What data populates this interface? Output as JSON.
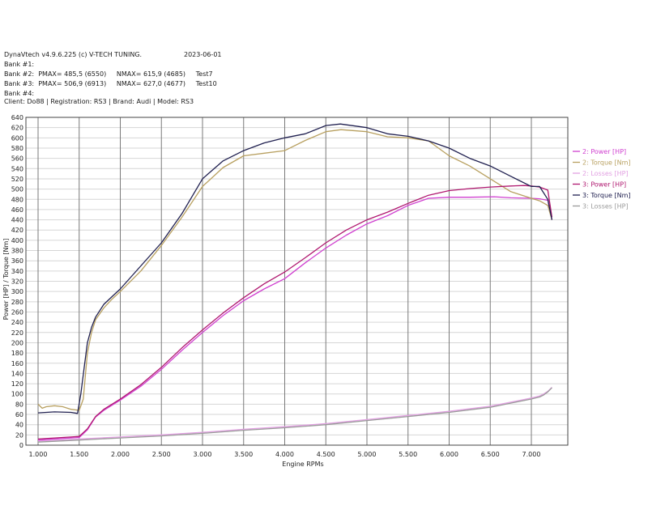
{
  "header": {
    "app": "DynaVtech v4.9.6.225 (c) V-TECH TUNING.",
    "date": "2023-06-01",
    "bank1": "Bank #1:",
    "bank2": "Bank #2:  PMAX= 485,5 (6550)     NMAX= 615,9 (4685)     Test7",
    "bank3": "Bank #3:  PMAX= 506,9 (6913)     NMAX= 627,0 (4677)     Test10",
    "bank4": "Bank #4:",
    "client": "Client: Do88 | Registration: RS3 | Brand: Audi | Model: RS3"
  },
  "chart_data": {
    "type": "line",
    "xlabel": "Engine RPMs",
    "ylabel": "Power [HP] / Torque [Nm]",
    "xlim": [
      1000,
      7250
    ],
    "ylim": [
      0,
      640
    ],
    "x_ticks": [
      "1.000",
      "1.500",
      "2.000",
      "2.500",
      "3.000",
      "3.500",
      "4.000",
      "4.500",
      "5.000",
      "5.500",
      "6.000",
      "6.500",
      "7.000"
    ],
    "x_tick_values": [
      1000,
      1500,
      2000,
      2500,
      3000,
      3500,
      4000,
      4500,
      5000,
      5500,
      6000,
      6500,
      7000
    ],
    "y_ticks": [
      "0",
      "20",
      "40",
      "60",
      "80",
      "100",
      "120",
      "140",
      "160",
      "180",
      "200",
      "220",
      "240",
      "260",
      "280",
      "300",
      "320",
      "340",
      "360",
      "380",
      "400",
      "420",
      "440",
      "460",
      "480",
      "500",
      "520",
      "540",
      "560",
      "580",
      "600",
      "620",
      "640"
    ],
    "y_tick_values": [
      0,
      20,
      40,
      60,
      80,
      100,
      120,
      140,
      160,
      180,
      200,
      220,
      240,
      260,
      280,
      300,
      320,
      340,
      360,
      380,
      400,
      420,
      440,
      460,
      480,
      500,
      520,
      540,
      560,
      580,
      600,
      620,
      640
    ],
    "grid": true,
    "legend_position": "right",
    "series": [
      {
        "name": "2: Power [HP]",
        "color": "#d040d0",
        "x": [
          1000,
          1200,
          1400,
          1500,
          1600,
          1700,
          1800,
          2000,
          2250,
          2500,
          2750,
          3000,
          3250,
          3500,
          3750,
          4000,
          4250,
          4500,
          4750,
          5000,
          5250,
          5500,
          5750,
          6000,
          6250,
          6550,
          6750,
          7000,
          7100,
          7200,
          7250
        ],
        "y": [
          10,
          12,
          14,
          15,
          30,
          55,
          68,
          88,
          115,
          148,
          185,
          220,
          253,
          282,
          305,
          325,
          356,
          385,
          410,
          432,
          448,
          468,
          482,
          484,
          484,
          485,
          483,
          482,
          481,
          478,
          440
        ]
      },
      {
        "name": "2: Torque [Nm]",
        "color": "#b8a060",
        "x": [
          1000,
          1050,
          1100,
          1200,
          1300,
          1400,
          1500,
          1550,
          1600,
          1650,
          1700,
          1800,
          1900,
          2000,
          2250,
          2500,
          2750,
          3000,
          3250,
          3500,
          3750,
          4000,
          4250,
          4500,
          4685,
          5000,
          5250,
          5500,
          5750,
          6000,
          6250,
          6500,
          6750,
          7000,
          7100,
          7200,
          7250
        ],
        "y": [
          80,
          72,
          75,
          77,
          75,
          70,
          68,
          90,
          180,
          220,
          245,
          268,
          285,
          300,
          340,
          390,
          445,
          505,
          542,
          565,
          570,
          575,
          595,
          612,
          616,
          612,
          602,
          600,
          594,
          565,
          545,
          520,
          495,
          482,
          477,
          468,
          440
        ]
      },
      {
        "name": "2: Losses [HP]",
        "color": "#e2a0e2",
        "x": [
          1000,
          1500,
          2000,
          2500,
          3000,
          3500,
          4000,
          4500,
          5000,
          5500,
          6000,
          6500,
          7000,
          7100,
          7150,
          7200,
          7250
        ],
        "y": [
          8,
          12,
          16,
          20,
          25,
          31,
          36,
          42,
          50,
          58,
          66,
          76,
          92,
          96,
          100,
          105,
          113
        ]
      },
      {
        "name": "3: Power [HP]",
        "color": "#b01870",
        "x": [
          1000,
          1200,
          1400,
          1500,
          1600,
          1700,
          1800,
          2000,
          2250,
          2500,
          2750,
          3000,
          3250,
          3500,
          3750,
          4000,
          4250,
          4500,
          4750,
          5000,
          5250,
          5500,
          5750,
          6000,
          6250,
          6500,
          6750,
          6913,
          7000,
          7100,
          7200,
          7250
        ],
        "y": [
          12,
          14,
          16,
          17,
          32,
          56,
          70,
          90,
          118,
          152,
          190,
          225,
          258,
          288,
          315,
          338,
          366,
          395,
          420,
          440,
          455,
          472,
          488,
          497,
          501,
          504,
          506,
          507,
          506,
          504,
          498,
          445
        ]
      },
      {
        "name": "3: Torque [Nm]",
        "color": "#202050",
        "x": [
          1000,
          1200,
          1400,
          1480,
          1520,
          1560,
          1600,
          1650,
          1700,
          1800,
          1900,
          2000,
          2250,
          2500,
          2750,
          3000,
          3250,
          3500,
          3750,
          4000,
          4250,
          4500,
          4677,
          5000,
          5250,
          5500,
          5750,
          6000,
          6250,
          6500,
          6750,
          7000,
          7100,
          7200,
          7250
        ],
        "y": [
          63,
          65,
          64,
          62,
          100,
          150,
          200,
          230,
          250,
          275,
          290,
          305,
          350,
          395,
          452,
          520,
          555,
          575,
          590,
          600,
          608,
          624,
          627,
          620,
          608,
          603,
          594,
          580,
          560,
          545,
          525,
          505,
          505,
          480,
          440
        ]
      },
      {
        "name": "3: Losses [HP]",
        "color": "#9a9a9a",
        "x": [
          1000,
          1500,
          2000,
          2500,
          3000,
          3500,
          4000,
          4500,
          5000,
          5500,
          6000,
          6500,
          7000,
          7100,
          7150,
          7200,
          7250
        ],
        "y": [
          6,
          10,
          14,
          18,
          23,
          29,
          34,
          40,
          48,
          56,
          64,
          74,
          90,
          94,
          98,
          104,
          112
        ]
      }
    ]
  }
}
